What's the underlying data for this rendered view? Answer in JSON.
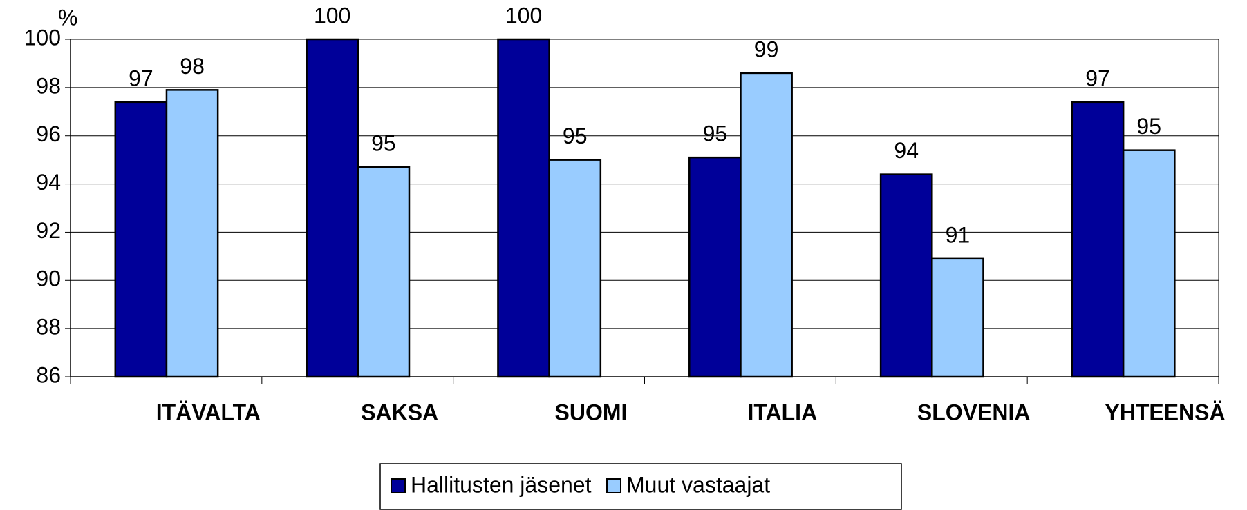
{
  "chart_data": {
    "type": "bar",
    "y_label": "%",
    "categories": [
      "ITÄVALTA",
      "SAKSA",
      "SUOMI",
      "ITALIA",
      "SLOVENIA",
      "YHTEENSÄ"
    ],
    "series": [
      {
        "name": "Hallitusten jäsenet",
        "color": "#000099",
        "values": [
          97.4,
          100,
          100,
          95.1,
          94.4,
          97.4
        ],
        "value_labels": [
          "97",
          "100",
          "100",
          "95",
          "94",
          "97"
        ]
      },
      {
        "name": "Muut vastaajat",
        "color": "#99ccff",
        "values": [
          97.9,
          94.7,
          95.0,
          98.6,
          90.9,
          95.4
        ],
        "value_labels": [
          "98",
          "95",
          "95",
          "99",
          "91",
          "95"
        ]
      }
    ],
    "ylim": [
      86,
      100
    ],
    "yticks": [
      86,
      88,
      90,
      92,
      94,
      96,
      98,
      100
    ],
    "grid": true
  }
}
